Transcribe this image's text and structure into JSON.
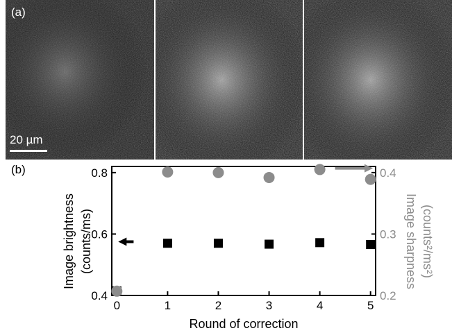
{
  "figure": {
    "panel_a_label": "(a)",
    "panel_b_label": "(b)",
    "scale_bar_label": "20 µm"
  },
  "chart_data": {
    "type": "scatter",
    "x": [
      0,
      1,
      2,
      3,
      4,
      5
    ],
    "xlabel": "Round of correction",
    "xlim": [
      -0.1,
      5.1
    ],
    "xticks": [
      "0",
      "1",
      "2",
      "3",
      "4",
      "5"
    ],
    "series": [
      {
        "axis": "left",
        "marker": "square",
        "color": "#000000",
        "values": [
          0.415,
          0.57,
          0.57,
          0.567,
          0.572,
          0.566
        ]
      },
      {
        "axis": "right",
        "marker": "circle",
        "color": "#8c8c8c",
        "values": [
          0.207,
          0.401,
          0.4,
          0.392,
          0.405,
          0.389
        ]
      }
    ],
    "ylabel_left": [
      "Image brightness",
      "(counts/ms)"
    ],
    "ylim_left": [
      0.4,
      0.82
    ],
    "yticks_left": [
      "0.4",
      "0.6",
      "0.8"
    ],
    "ylabel_right": [
      "Image sharpness",
      "(counts²/ms²)"
    ],
    "ylim_right": [
      0.2,
      0.41
    ],
    "yticks_right": [
      "0.2",
      "0.3",
      "0.4"
    ],
    "annotations": [
      {
        "type": "arrow",
        "direction": "left",
        "color": "#000000",
        "target_axis": "left"
      },
      {
        "type": "arrow",
        "direction": "right",
        "color": "#8c8c8c",
        "target_axis": "right"
      }
    ],
    "grid": false
  }
}
